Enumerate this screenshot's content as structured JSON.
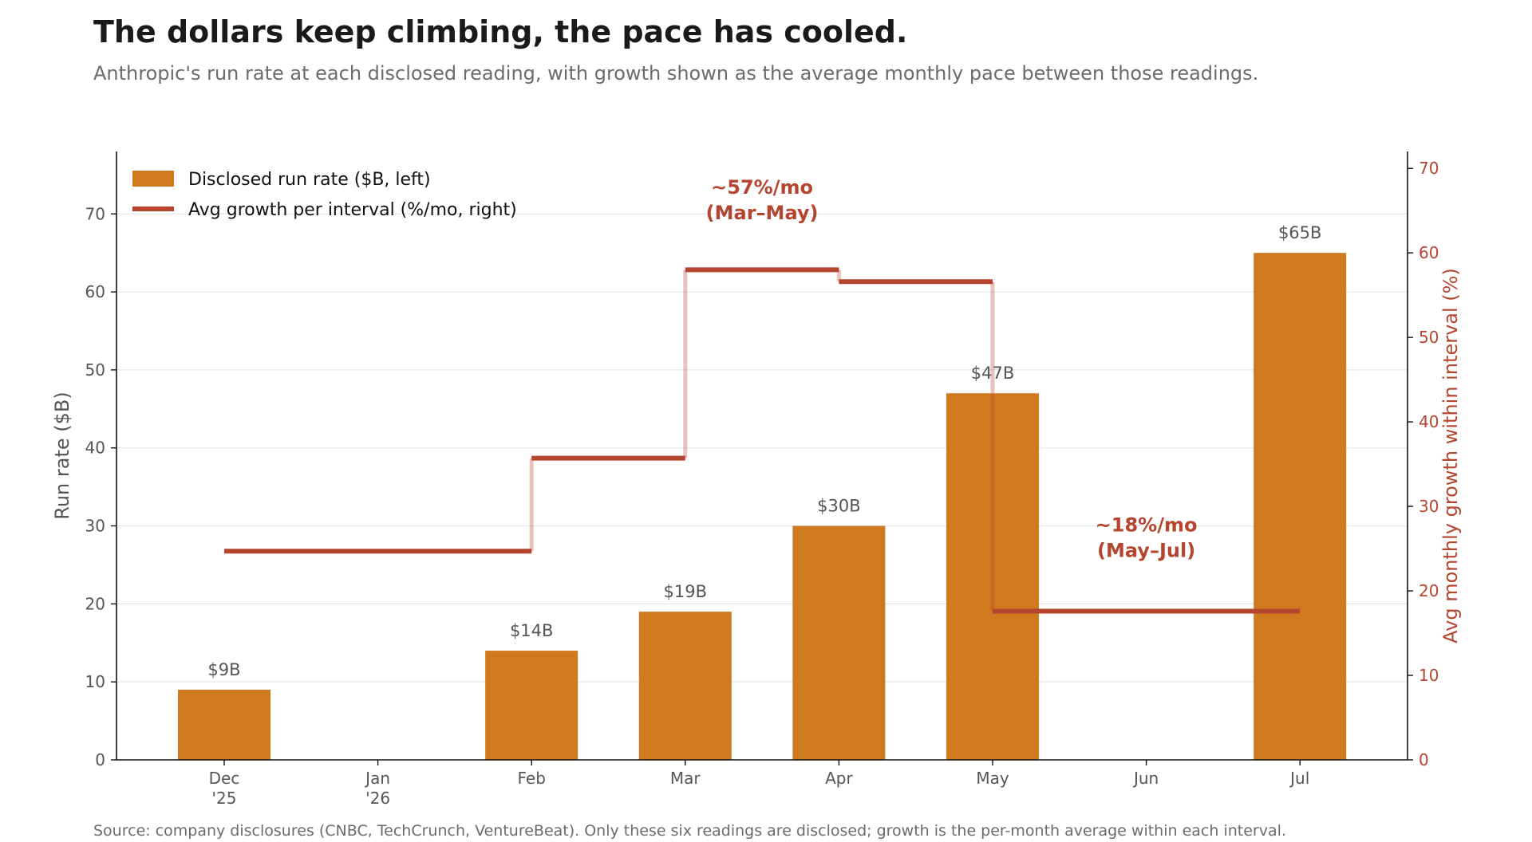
{
  "header": {
    "title": "The dollars keep climbing, the pace has cooled.",
    "subtitle": "Anthropic's run rate at each disclosed reading, with growth shown as the average monthly pace between those readings."
  },
  "footer": {
    "source": "Source: company disclosures (CNBC, TechCrunch, VentureBeat). Only these six readings are disclosed; growth is the per-month average within each interval."
  },
  "chart_data": {
    "type": "bar",
    "categories": [
      {
        "line1": "Dec",
        "line2": "'25"
      },
      {
        "line1": "Jan",
        "line2": "'26"
      },
      {
        "line1": "Feb",
        "line2": ""
      },
      {
        "line1": "Mar",
        "line2": ""
      },
      {
        "line1": "Apr",
        "line2": ""
      },
      {
        "line1": "May",
        "line2": ""
      },
      {
        "line1": "Jun",
        "line2": ""
      },
      {
        "line1": "Jul",
        "line2": ""
      }
    ],
    "series": [
      {
        "name": "Disclosed run rate ($B, left)",
        "axis": "left",
        "type": "bar",
        "color": "#d07a1f",
        "values": [
          9,
          null,
          14,
          19,
          30,
          47,
          null,
          65
        ],
        "labels": [
          "$9B",
          "",
          "$14B",
          "$19B",
          "$30B",
          "$47B",
          "",
          "$65B"
        ]
      },
      {
        "name": "Avg growth per interval (%/mo, right)",
        "axis": "right",
        "type": "step",
        "color": "#b5452f",
        "segments": [
          {
            "from": 0,
            "to": 2,
            "value": 24.7
          },
          {
            "from": 2,
            "to": 3,
            "value": 35.7
          },
          {
            "from": 3,
            "to": 4,
            "value": 58
          },
          {
            "from": 4,
            "to": 5,
            "value": 56.6
          },
          {
            "from": 5,
            "to": 7,
            "value": 17.6
          }
        ]
      }
    ],
    "ylabel_left": "Run rate ($B)",
    "ylabel_right": "Avg monthly growth within interval (%)",
    "ylim_left": [
      0,
      78
    ],
    "ylim_right": [
      0,
      72
    ],
    "yticks_left": [
      0,
      10,
      20,
      30,
      40,
      50,
      60,
      70
    ],
    "yticks_right": [
      0,
      10,
      20,
      30,
      40,
      50,
      60,
      70
    ],
    "grid": true,
    "legend_position": "top-left",
    "annotations": [
      {
        "line1": "~57%/mo",
        "line2": "(Mar–May)",
        "x": 3.5,
        "y_right": 64
      },
      {
        "line1": "~18%/mo",
        "line2": "(May–Jul)",
        "x": 6,
        "y_right": 24
      }
    ],
    "colors": {
      "bar": "#d07a1f",
      "growth": "#b5452f",
      "grid": "#e6e6e6",
      "axis": "#111111"
    }
  }
}
